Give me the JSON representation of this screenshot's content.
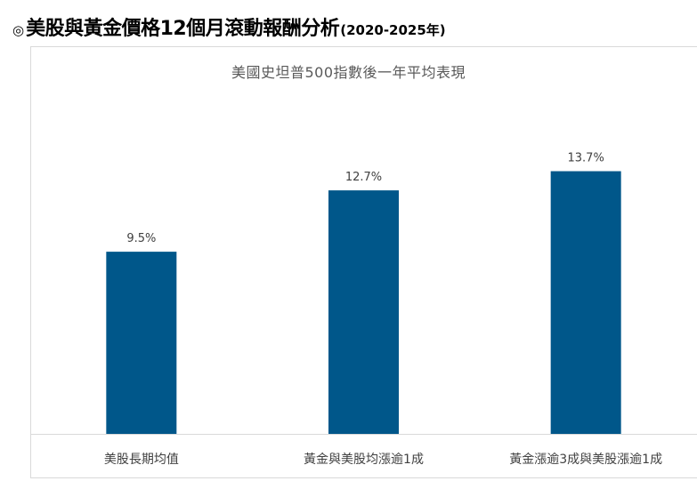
{
  "heading": {
    "bullet": "◎",
    "main": "美股與黃金價格12個月滾動報酬分析",
    "sub": "(2020-2025年)"
  },
  "chart_data": {
    "type": "bar",
    "title": "美國史坦普500指數後一年平均表現",
    "categories": [
      "美股長期均值",
      "黃金與美股均漲逾1成",
      "黃金漲逾3成與美股漲逾1成"
    ],
    "values": [
      9.5,
      12.7,
      13.7
    ],
    "data_labels": [
      "9.5%",
      "12.7%",
      "13.7%"
    ],
    "unit": "%",
    "ylim": [
      0,
      16.6
    ],
    "grid": false,
    "legend": "none",
    "xlabel": "",
    "ylabel": "",
    "bar_color": "#00578a",
    "axis_color": "#d9d9d9"
  }
}
